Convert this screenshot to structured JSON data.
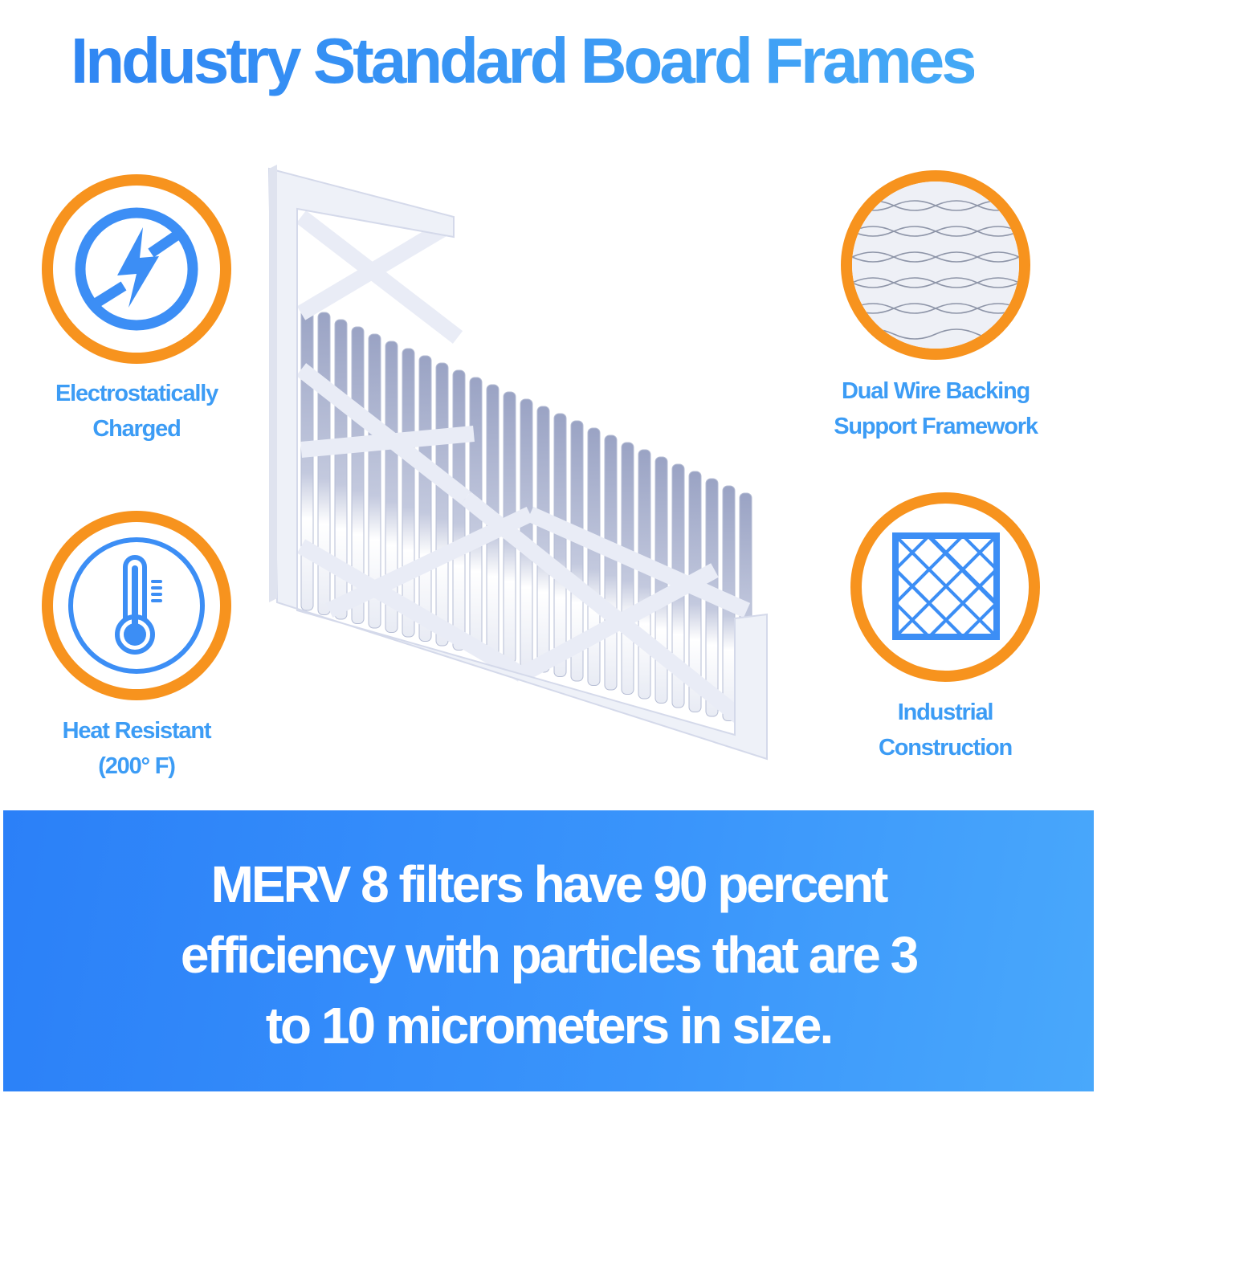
{
  "title": "Industry Standard Board Frames",
  "features": [
    {
      "icon": "no-static-lightning-icon",
      "lines": [
        "Electrostatically",
        "Charged"
      ]
    },
    {
      "icon": "thermometer-icon",
      "lines": [
        "Heat Resistant",
        "(200° F)"
      ]
    },
    {
      "icon": "wire-mesh-photo-icon",
      "lines": [
        "Dual Wire Backing",
        "Support Framework"
      ]
    },
    {
      "icon": "grid-frame-icon",
      "lines": [
        "Industrial",
        "Construction"
      ]
    }
  ],
  "banner": {
    "lines": [
      "MERV 8 filters have 90 percent",
      "efficiency with particles that are 3",
      "to 10 micrometers in size."
    ]
  },
  "colors": {
    "accent_blue": "#3c9cf5",
    "ring_orange": "#f7931e",
    "banner_blue": "#2b80f8"
  }
}
